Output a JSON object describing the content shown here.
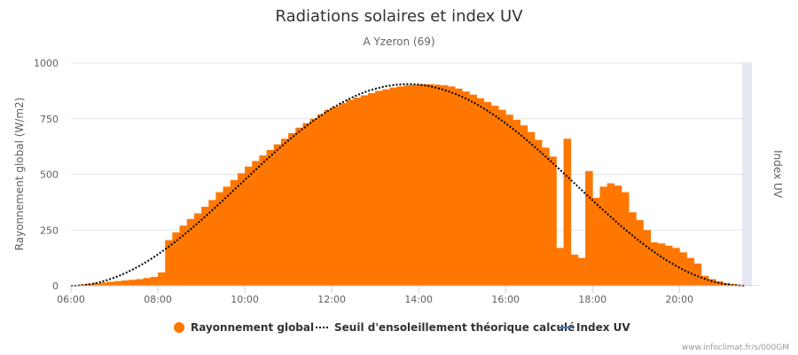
{
  "chart_data": {
    "type": "bar",
    "title": "Radiations solaires et index UV",
    "subtitle": "A Yzeron (69)",
    "ylabel": "Rayonnement global (W/m2)",
    "y2label": "Index UV",
    "xlim": [
      "06:00",
      "21:40"
    ],
    "ylim": [
      0,
      1000
    ],
    "xticks": [
      "06:00",
      "08:00",
      "10:00",
      "12:00",
      "14:00",
      "16:00",
      "18:00",
      "20:00"
    ],
    "yticks": [
      "0",
      "250",
      "500",
      "750",
      "1000"
    ],
    "grid": true,
    "legend_placement": "bottom-center",
    "colors": {
      "bars": "#ff7700",
      "threshold": "#000000",
      "uv": "#2f7ed8",
      "plotband": "#e6e9f3"
    },
    "series": [
      {
        "name": "Rayonnement global",
        "type": "column",
        "interval_minutes": 10,
        "start_time": "06:00",
        "values": [
          3,
          6,
          9,
          12,
          15,
          18,
          21,
          24,
          27,
          30,
          35,
          40,
          60,
          205,
          240,
          270,
          300,
          325,
          355,
          385,
          420,
          445,
          475,
          505,
          535,
          560,
          585,
          610,
          635,
          660,
          685,
          710,
          730,
          750,
          770,
          790,
          805,
          820,
          835,
          845,
          855,
          865,
          875,
          882,
          890,
          895,
          900,
          902,
          905,
          905,
          903,
          900,
          895,
          885,
          872,
          858,
          842,
          825,
          808,
          790,
          768,
          745,
          720,
          690,
          655,
          620,
          580,
          170,
          660,
          140,
          125,
          515,
          395,
          445,
          460,
          450,
          420,
          330,
          295,
          250,
          195,
          190,
          180,
          170,
          150,
          125,
          100,
          45,
          30,
          20,
          12,
          8,
          5,
          2,
          1
        ]
      },
      {
        "name": "Seuil d'ensoleillement théorique calculé",
        "type": "dotted-line",
        "start_time": "06:00",
        "end_time": "21:30",
        "peak_time": "13:45",
        "peak_value": 905
      },
      {
        "name": "Index UV",
        "type": "line",
        "values": []
      }
    ]
  },
  "footer": {
    "credits": "www.infoclimat.fr/s/000GM"
  }
}
